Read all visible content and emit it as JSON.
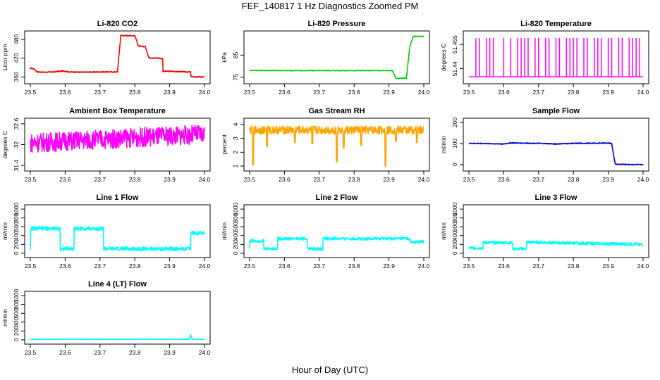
{
  "page": {
    "title": "FEF_140817  1 Hz Diagnostics Zoomed PM",
    "xlabel": "Hour of Day (UTC)"
  },
  "chart_data": [
    {
      "type": "line",
      "title": "Li-820 CO2",
      "ylabel": "Licor ppm",
      "color": "#ff0000",
      "xlim": [
        23.5,
        24.0
      ],
      "ylim": [
        345,
        500
      ],
      "yticks": [
        360,
        420,
        480
      ],
      "xticks": [
        23.5,
        23.6,
        23.7,
        23.8,
        23.9,
        24.0
      ],
      "series": [
        {
          "x": [
            23.5,
            23.5,
            23.51,
            23.52,
            23.54,
            23.57,
            23.58,
            23.6,
            23.61,
            23.65,
            23.7,
            23.75,
            23.76,
            23.76,
            23.8,
            23.81,
            23.81,
            23.83,
            23.84,
            23.84,
            23.87,
            23.88,
            23.88,
            23.9,
            23.93,
            23.95,
            23.96,
            23.96,
            23.97,
            24.0
          ],
          "y": [
            384,
            388,
            386,
            376,
            375,
            376,
            378,
            379,
            376,
            375,
            376,
            376,
            495,
            492,
            492,
            460,
            458,
            457,
            422,
            421,
            420,
            418,
            378,
            378,
            377,
            376,
            376,
            362,
            360,
            360
          ],
          "noise": 1.5
        }
      ]
    },
    {
      "type": "line",
      "title": "Li-820 Pressure",
      "ylabel": "kPa",
      "color": "#00cc00",
      "xlim": [
        23.5,
        24.0
      ],
      "ylim": [
        73,
        95
      ],
      "yticks": [
        75,
        85
      ],
      "xticks": [
        23.5,
        23.6,
        23.7,
        23.8,
        23.9,
        24.0
      ],
      "series": [
        {
          "x": [
            23.5,
            23.6,
            23.7,
            23.8,
            23.91,
            23.92,
            23.95,
            23.96,
            23.97,
            24.0
          ],
          "y": [
            78.1,
            78.0,
            78.0,
            78.0,
            78.0,
            74.5,
            74.5,
            89.0,
            93.5,
            93.5
          ],
          "noise": 0.15
        }
      ]
    },
    {
      "type": "spike",
      "title": "Li-820 Temperature",
      "ylabel": "degrees C",
      "color": "#ff00ff",
      "xlim": [
        23.5,
        24.0
      ],
      "ylim": [
        51.432,
        51.462
      ],
      "yticks": [
        51.44,
        51.455
      ],
      "xticks": [
        23.5,
        23.6,
        23.7,
        23.8,
        23.9,
        24.0
      ],
      "series": [
        {
          "base": 51.435,
          "peak": 51.459,
          "spikes": [
            23.52,
            23.53,
            23.55,
            23.56,
            23.57,
            23.6,
            23.62,
            23.64,
            23.65,
            23.66,
            23.67,
            23.69,
            23.7,
            23.72,
            23.73,
            23.75,
            23.76,
            23.78,
            23.79,
            23.8,
            23.81,
            23.83,
            23.84,
            23.86,
            23.87,
            23.88,
            23.9,
            23.91,
            23.93,
            23.94,
            23.96,
            23.97,
            23.98,
            23.99
          ]
        }
      ]
    },
    {
      "type": "line",
      "title": "Ambient Box Temperature",
      "ylabel": "degrees C",
      "color": "#ff00ff",
      "xlim": [
        23.5,
        24.0
      ],
      "ylim": [
        31.3,
        32.7
      ],
      "yticks": [
        31.4,
        32.0,
        32.6
      ],
      "xticks": [
        23.5,
        23.6,
        23.7,
        23.8,
        23.9,
        24.0
      ],
      "series": [
        {
          "x": [
            23.5,
            23.6,
            23.7,
            23.8,
            23.9,
            24.0
          ],
          "y": [
            32.05,
            32.1,
            32.15,
            32.2,
            32.25,
            32.3
          ],
          "noise": 0.28
        }
      ]
    },
    {
      "type": "line",
      "title": "Gas Stream RH",
      "ylabel": "percent",
      "color": "#ffa500",
      "xlim": [
        23.5,
        24.0
      ],
      "ylim": [
        0.8,
        4.3
      ],
      "yticks": [
        1.0,
        2.0,
        3.0,
        4.0
      ],
      "xticks": [
        23.5,
        23.6,
        23.7,
        23.8,
        23.9,
        24.0
      ],
      "series": [
        {
          "x": [
            23.5,
            24.0
          ],
          "y": [
            3.6,
            3.6
          ],
          "noise": 0.3,
          "dips": [
            [
              23.51,
              1.1
            ],
            [
              23.55,
              2.4
            ],
            [
              23.63,
              2.7
            ],
            [
              23.68,
              2.6
            ],
            [
              23.75,
              1.3
            ],
            [
              23.77,
              2.3
            ],
            [
              23.82,
              2.5
            ],
            [
              23.89,
              1.0
            ],
            [
              23.92,
              2.8
            ],
            [
              23.98,
              2.7
            ]
          ]
        }
      ]
    },
    {
      "type": "line",
      "title": "Sample Flow",
      "ylabel": "ml/min",
      "color": "#0000cc",
      "xlim": [
        23.5,
        24.0
      ],
      "ylim": [
        -20,
        210
      ],
      "yticks": [
        0,
        100,
        200
      ],
      "xticks": [
        23.5,
        23.6,
        23.7,
        23.8,
        23.9,
        24.0
      ],
      "series": [
        {
          "x": [
            23.5,
            23.55,
            23.6,
            23.62,
            23.7,
            23.75,
            23.8,
            23.9,
            23.91,
            23.92,
            24.0
          ],
          "y": [
            101,
            100,
            98,
            103,
            101,
            98,
            101,
            102,
            100,
            2,
            0
          ],
          "noise": 2
        }
      ]
    },
    {
      "type": "line",
      "title": "Line 1 Flow",
      "ylabel": "ml/min",
      "color": "#00ffff",
      "xlim": [
        23.5,
        24.0
      ],
      "ylim": [
        -50,
        1050
      ],
      "yticks": [
        0,
        200,
        400,
        600,
        800,
        1000
      ],
      "xticks": [
        23.5,
        23.6,
        23.7,
        23.8,
        23.9,
        24.0
      ],
      "series": [
        {
          "x": [
            23.5,
            23.5,
            23.585,
            23.585,
            23.625,
            23.625,
            23.71,
            23.71,
            23.96,
            23.96,
            24.0
          ],
          "y": [
            100,
            560,
            560,
            100,
            100,
            560,
            560,
            100,
            100,
            460,
            460
          ],
          "noise": 45
        }
      ]
    },
    {
      "type": "line",
      "title": "Line 2 Flow",
      "ylabel": "ml/min",
      "color": "#00ffff",
      "xlim": [
        23.5,
        24.0
      ],
      "ylim": [
        -50,
        1050
      ],
      "yticks": [
        0,
        200,
        400,
        600,
        800,
        1000
      ],
      "xticks": [
        23.5,
        23.6,
        23.7,
        23.8,
        23.9,
        24.0
      ],
      "series": [
        {
          "x": [
            23.5,
            23.5,
            23.54,
            23.54,
            23.58,
            23.58,
            23.665,
            23.665,
            23.71,
            23.71,
            23.96,
            23.96,
            24.0
          ],
          "y": [
            100,
            280,
            280,
            100,
            100,
            330,
            330,
            100,
            100,
            330,
            330,
            240,
            260
          ],
          "noise": 35
        }
      ]
    },
    {
      "type": "line",
      "title": "Line 3 Flow",
      "ylabel": "ml/min",
      "color": "#00ffff",
      "xlim": [
        23.5,
        24.0
      ],
      "ylim": [
        -50,
        1050
      ],
      "yticks": [
        0,
        200,
        400,
        600,
        800,
        1000
      ],
      "xticks": [
        23.5,
        23.6,
        23.7,
        23.8,
        23.9,
        24.0
      ],
      "series": [
        {
          "x": [
            23.5,
            23.5,
            23.54,
            23.54,
            23.625,
            23.625,
            23.665,
            23.665,
            24.0
          ],
          "y": [
            120,
            120,
            120,
            240,
            240,
            100,
            100,
            250,
            200
          ],
          "noise": 35
        }
      ]
    },
    {
      "type": "line",
      "title": "Line 4 (LT) Flow",
      "ylabel": "ml/min",
      "color": "#00ffff",
      "xlim": [
        23.5,
        24.0
      ],
      "ylim": [
        -50,
        1050
      ],
      "yticks": [
        0,
        200,
        400,
        600,
        800,
        1000
      ],
      "xticks": [
        23.5,
        23.6,
        23.7,
        23.8,
        23.9,
        24.0
      ],
      "series": [
        {
          "x": [
            23.5,
            23.95,
            23.955,
            23.96,
            23.965,
            24.0
          ],
          "y": [
            10,
            10,
            10,
            110,
            10,
            10
          ],
          "noise": 1
        }
      ]
    }
  ]
}
